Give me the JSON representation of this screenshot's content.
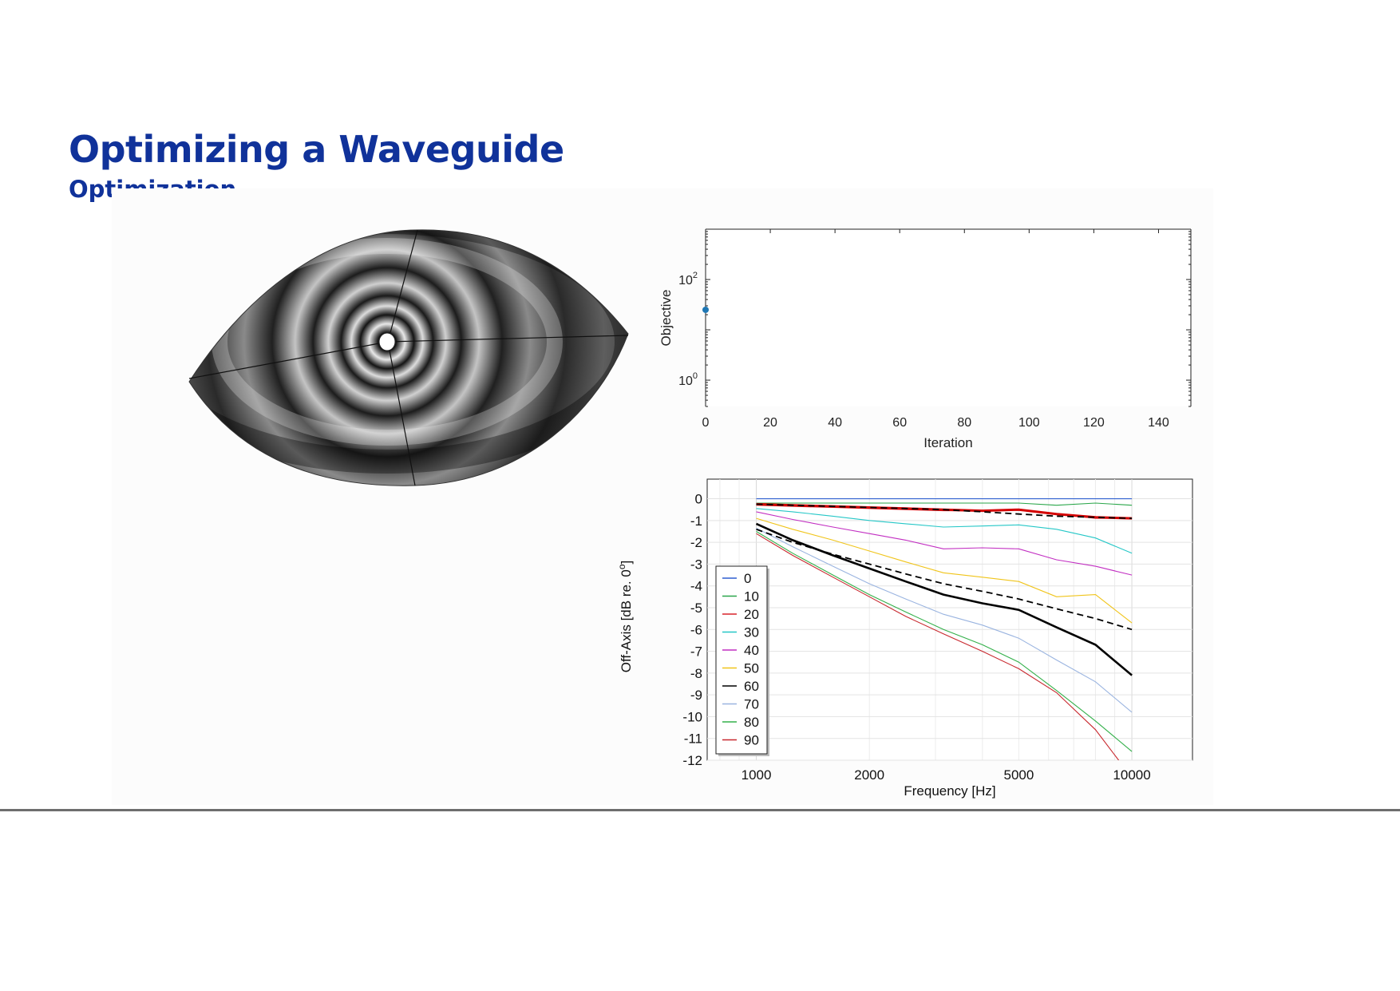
{
  "header": {
    "title": "Optimizing a Waveguide",
    "subtitle": "Optimization"
  },
  "colors": {
    "title": "#10329a",
    "footer_line": "#6e6e6e"
  },
  "waveguide": {
    "description_icon": "waveguide-pressure-field-image"
  },
  "chart_data": [
    {
      "type": "scatter",
      "title": "",
      "xlabel": "Iteration",
      "ylabel": "Objective",
      "xlim": [
        0,
        150
      ],
      "ylim": [
        0.3,
        1000
      ],
      "yscale": "log",
      "xticks": [
        "0",
        "20",
        "40",
        "60",
        "80",
        "100",
        "120",
        "140"
      ],
      "yticks": [
        {
          "base": "10",
          "exp": "2"
        },
        {
          "base": "10",
          "exp": "0"
        }
      ],
      "grid": false,
      "points": [
        {
          "x": 0,
          "y": 25
        }
      ],
      "color": "#1f77b4"
    },
    {
      "type": "line",
      "title": "",
      "xlabel": "Frequency [Hz]",
      "ylabel": "Off-Axis  [dB re. 0",
      "ylabel_sup": "o",
      "ylabel_end": "]",
      "xscale": "log",
      "xlim": [
        740,
        14500
      ],
      "ylim": [
        -12,
        0.9
      ],
      "xticks": [
        "1000",
        "2000",
        "5000",
        "10000"
      ],
      "yticks": [
        "0",
        "-1",
        "-2",
        "-3",
        "-4",
        "-5",
        "-6",
        "-7",
        "-8",
        "-9",
        "-10",
        "-11",
        "-12"
      ],
      "grid": true,
      "legend": "lower-left",
      "x": [
        1000,
        1250,
        1600,
        2000,
        2500,
        3150,
        4000,
        5000,
        6300,
        8000,
        10000
      ],
      "series": [
        {
          "name": "0",
          "color": "#2f5fd0",
          "values": [
            0,
            0,
            0,
            0,
            0,
            0,
            0,
            0,
            0,
            0,
            0
          ]
        },
        {
          "name": "10",
          "color": "#2aa64a",
          "values": [
            -0.2,
            -0.2,
            -0.2,
            -0.2,
            -0.2,
            -0.2,
            -0.2,
            -0.2,
            -0.3,
            -0.2,
            -0.3
          ]
        },
        {
          "name": "20",
          "color": "#d9232a",
          "values": [
            -0.3,
            -0.35,
            -0.4,
            -0.45,
            -0.5,
            -0.55,
            -0.55,
            -0.5,
            -0.7,
            -0.9,
            -0.9
          ]
        },
        {
          "name": "30",
          "color": "#25c7c7",
          "values": [
            -0.45,
            -0.6,
            -0.8,
            -1.0,
            -1.15,
            -1.3,
            -1.25,
            -1.2,
            -1.4,
            -1.8,
            -2.5
          ]
        },
        {
          "name": "40",
          "color": "#c22fc2",
          "values": [
            -0.6,
            -0.95,
            -1.3,
            -1.6,
            -1.9,
            -2.3,
            -2.25,
            -2.3,
            -2.8,
            -3.1,
            -3.5
          ]
        },
        {
          "name": "50",
          "color": "#f0c419",
          "values": [
            -0.9,
            -1.4,
            -1.9,
            -2.4,
            -2.9,
            -3.4,
            -3.6,
            -3.8,
            -4.5,
            -4.4,
            -5.7
          ]
        },
        {
          "name": "60",
          "color": "#000000",
          "values": [
            -1.15,
            -1.9,
            -2.6,
            -3.2,
            -3.8,
            -4.4,
            -4.8,
            -5.1,
            -5.9,
            -6.7,
            -8.1
          ]
        },
        {
          "name": "70",
          "color": "#9ab4e0",
          "values": [
            -1.35,
            -2.2,
            -3.1,
            -3.9,
            -4.6,
            -5.3,
            -5.8,
            -6.4,
            -7.4,
            -8.4,
            -9.8
          ]
        },
        {
          "name": "80",
          "color": "#33b04a",
          "values": [
            -1.5,
            -2.5,
            -3.5,
            -4.4,
            -5.2,
            -6.0,
            -6.7,
            -7.5,
            -8.8,
            -10.2,
            -11.6
          ]
        },
        {
          "name": "90",
          "color": "#c8282e",
          "values": [
            -1.6,
            -2.6,
            -3.6,
            -4.5,
            -5.4,
            -6.2,
            -7.0,
            -7.8,
            -8.9,
            -10.6,
            -12.8
          ]
        }
      ],
      "reference_lines": [
        {
          "style": "bold-red",
          "color": "#d40000",
          "values": [
            -0.25,
            -0.3,
            -0.35,
            -0.4,
            -0.45,
            -0.5,
            -0.55,
            -0.5,
            -0.7,
            -0.85,
            -0.9
          ]
        },
        {
          "style": "dashed-black",
          "color": "#000000",
          "values": [
            -0.25,
            -0.3,
            -0.35,
            -0.4,
            -0.45,
            -0.5,
            -0.6,
            -0.7,
            -0.8,
            -0.85,
            -0.9
          ]
        },
        {
          "style": "dashed-black",
          "color": "#000000",
          "values": [
            -1.4,
            -2.0,
            -2.55,
            -3.0,
            -3.45,
            -3.9,
            -4.25,
            -4.6,
            -5.05,
            -5.5,
            -6.0
          ]
        }
      ]
    }
  ]
}
